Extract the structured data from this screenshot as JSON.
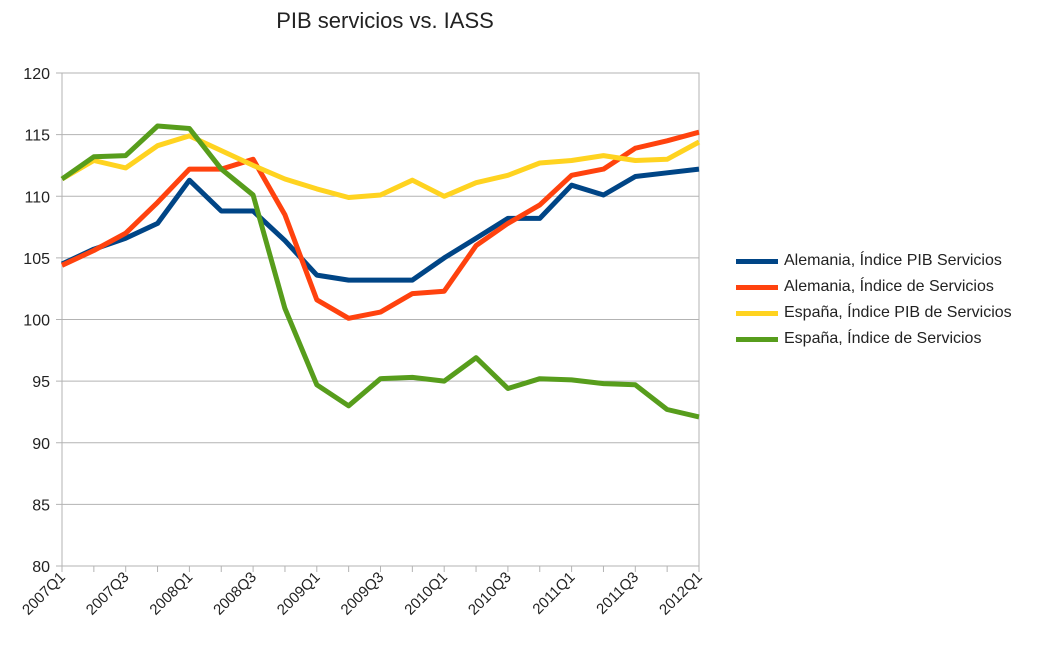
{
  "chart_data": {
    "type": "line",
    "title": "PIB servicios vs. IASS",
    "xlabel": "",
    "ylabel": "",
    "ylim": [
      80,
      120
    ],
    "yticks": [
      80,
      85,
      90,
      95,
      100,
      105,
      110,
      115,
      120
    ],
    "grid": true,
    "legend_position": "right",
    "categories": [
      "2007Q1",
      "2007Q2",
      "2007Q3",
      "2007Q4",
      "2008Q1",
      "2008Q2",
      "2008Q3",
      "2008Q4",
      "2009Q1",
      "2009Q2",
      "2009Q3",
      "2009Q4",
      "2010Q1",
      "2010Q2",
      "2010Q3",
      "2010Q4",
      "2011Q1",
      "2011Q2",
      "2011Q3",
      "2011Q4",
      "2012Q1"
    ],
    "tick_labels": [
      "2007Q1",
      "2007Q3",
      "2008Q1",
      "2008Q3",
      "2009Q1",
      "2009Q3",
      "2010Q1",
      "2010Q3",
      "2011Q1",
      "2011Q3",
      "2012Q1"
    ],
    "series": [
      {
        "name": "Alemania, Índice PIB Servicios",
        "color": "#004586",
        "values": [
          104.5,
          105.7,
          106.6,
          107.8,
          111.3,
          108.8,
          108.8,
          106.4,
          103.6,
          103.2,
          103.2,
          103.2,
          105.0,
          106.6,
          108.2,
          108.2,
          110.9,
          110.1,
          111.6,
          111.9,
          112.2
        ]
      },
      {
        "name": "Alemania, Índice de Servicios",
        "color": "#ff420e",
        "values": [
          104.4,
          105.6,
          107.0,
          109.5,
          112.2,
          112.2,
          113.0,
          108.5,
          101.6,
          100.1,
          100.6,
          102.1,
          102.3,
          106.0,
          107.8,
          109.3,
          111.7,
          112.2,
          113.9,
          114.5,
          115.2
        ]
      },
      {
        "name": "España, Índice PIB de Servicios",
        "color": "#ffd320",
        "values": [
          111.4,
          112.9,
          112.3,
          114.1,
          114.9,
          113.7,
          112.5,
          111.4,
          110.6,
          109.9,
          110.1,
          111.3,
          110.0,
          111.1,
          111.7,
          112.7,
          112.9,
          113.3,
          112.9,
          113.0,
          114.4
        ]
      },
      {
        "name": "España, Índice de Servicios",
        "color": "#579d1c",
        "values": [
          111.4,
          113.2,
          113.3,
          115.7,
          115.5,
          112.2,
          110.1,
          100.9,
          94.7,
          93.0,
          95.2,
          95.3,
          95.0,
          96.9,
          94.4,
          95.2,
          95.1,
          94.8,
          94.7,
          92.7,
          92.1
        ]
      }
    ]
  }
}
